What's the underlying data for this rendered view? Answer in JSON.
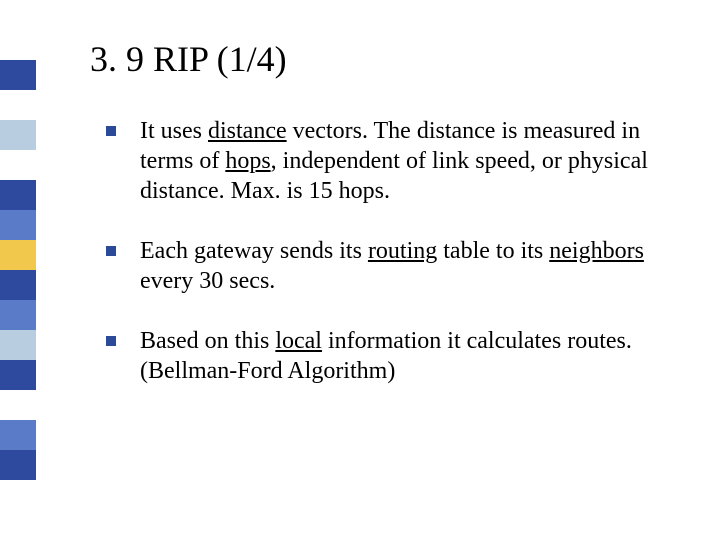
{
  "sidebar": {
    "colors": [
      "#ffffff",
      "#ffffff",
      "#2e4a9e",
      "#ffffff",
      "#b8cde0",
      "#ffffff",
      "#2e4a9e",
      "#5a7bc8",
      "#f2c84c",
      "#2e4a9e",
      "#5a7bc8",
      "#b8cde0",
      "#2e4a9e",
      "#ffffff",
      "#5a7bc8",
      "#2e4a9e",
      "#ffffff",
      "#ffffff"
    ]
  },
  "title": "3. 9 RIP (1/4)",
  "bullets": [
    {
      "segments": [
        {
          "t": "It uses "
        },
        {
          "t": "distance",
          "u": true
        },
        {
          "t": " vectors. The distance is measured in terms of "
        },
        {
          "t": "hops",
          "u": true
        },
        {
          "t": ", independent of link speed, or physical distance. Max. is 15 hops."
        }
      ]
    },
    {
      "segments": [
        {
          "t": "Each gateway sends its "
        },
        {
          "t": "routing",
          "u": true
        },
        {
          "t": " table to its "
        },
        {
          "t": "neighbors",
          "u": true
        },
        {
          "t": " every 30 secs."
        }
      ]
    },
    {
      "segments": [
        {
          "t": "Based on this "
        },
        {
          "t": "local",
          "u": true
        },
        {
          "t": " information it calculates routes. (Bellman-Ford Algorithm)"
        }
      ]
    }
  ],
  "style": {
    "background": "#ffffff",
    "title_fontsize": 36,
    "body_fontsize": 24,
    "bullet_color": "#2c4a9e",
    "text_color": "#000000",
    "font_family": "Times New Roman"
  }
}
